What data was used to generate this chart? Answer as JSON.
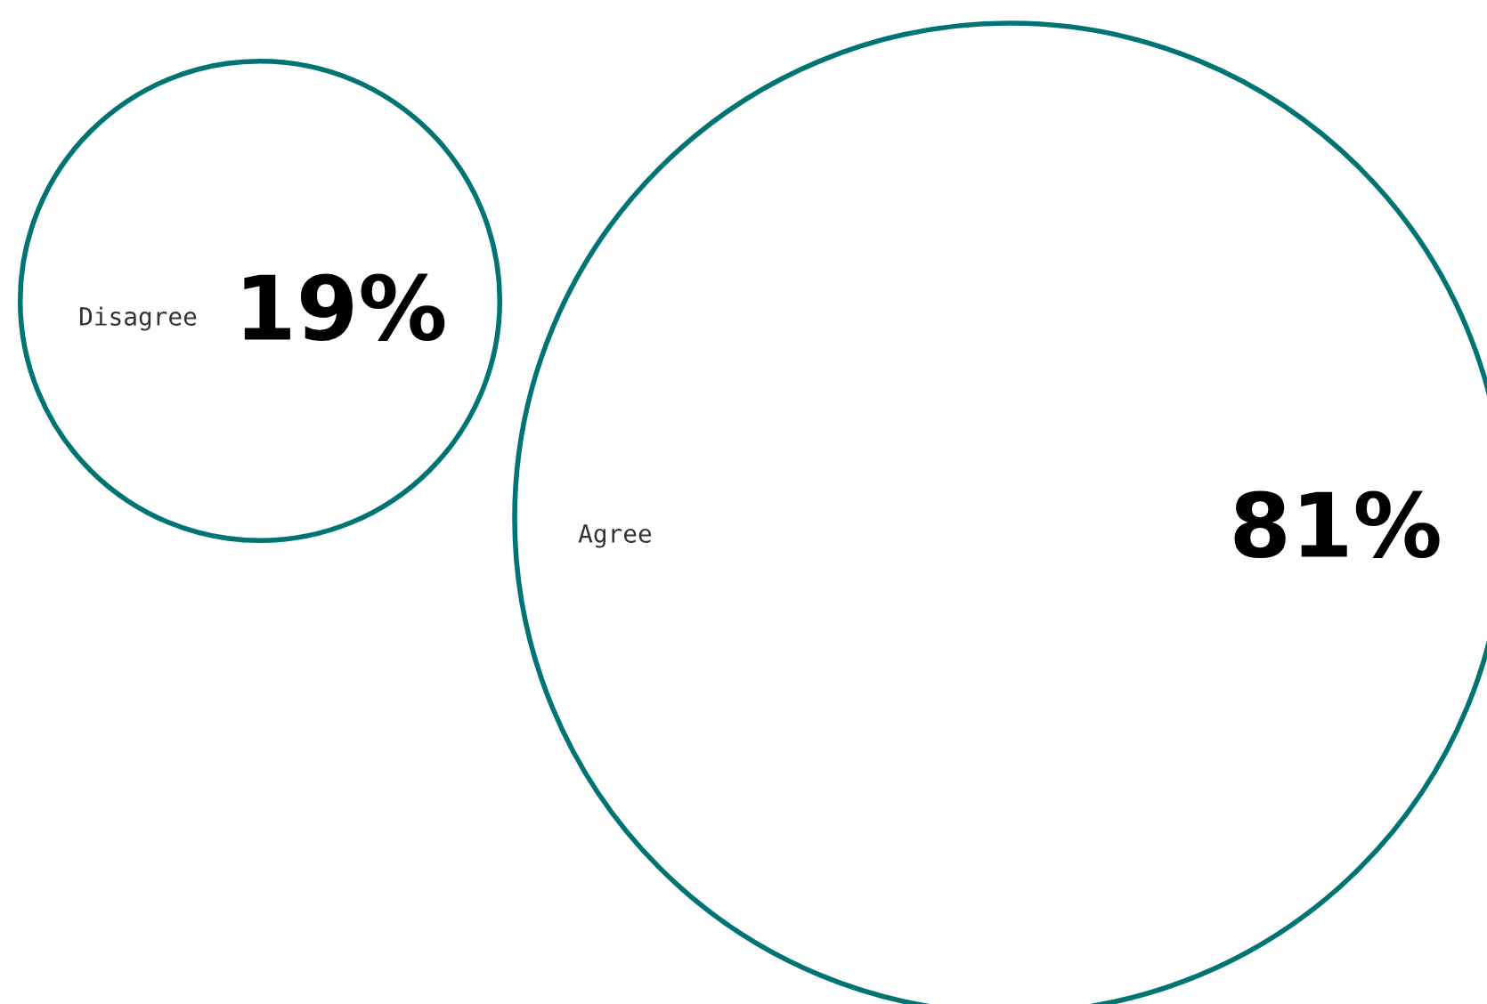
{
  "chart_data": {
    "type": "other",
    "categories": [
      "Disagree",
      "Agree"
    ],
    "values": [
      19,
      81
    ],
    "value_labels": [
      "19%",
      "81%"
    ],
    "color": "#007373"
  }
}
